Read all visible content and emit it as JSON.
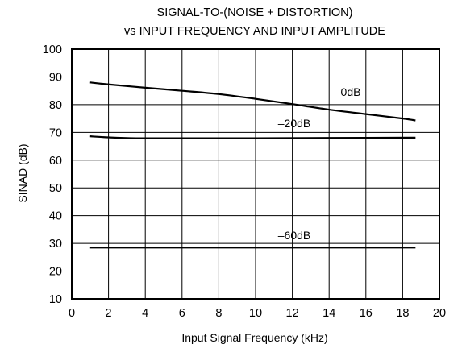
{
  "chart_data": {
    "type": "line",
    "title": "SIGNAL-TO-(NOISE + DISTORTION)",
    "subtitle": "vs INPUT FREQUENCY AND INPUT AMPLITUDE",
    "xlabel": "Input Signal Frequency (kHz)",
    "ylabel": "SINAD (dB)",
    "xlim": [
      0,
      20
    ],
    "ylim": [
      10,
      100
    ],
    "x_ticks": [
      "0",
      "2",
      "4",
      "6",
      "8",
      "10",
      "12",
      "14",
      "16",
      "18",
      "20"
    ],
    "y_ticks": [
      "10",
      "20",
      "30",
      "40",
      "50",
      "60",
      "70",
      "80",
      "90",
      "100"
    ],
    "grid": true,
    "series": [
      {
        "name": "0dB",
        "x": [
          1,
          2,
          4,
          6,
          8,
          10,
          12,
          14,
          16,
          18,
          18.7
        ],
        "y": [
          88,
          87.3,
          86.1,
          85,
          83.8,
          82.1,
          80.2,
          78.2,
          76.6,
          75,
          74.3
        ]
      },
      {
        "name": "–20dB",
        "x": [
          1,
          2,
          3.5,
          6,
          10,
          14,
          18.7
        ],
        "y": [
          68.6,
          68.2,
          67.9,
          67.9,
          67.9,
          68,
          68.1
        ]
      },
      {
        "name": "–60dB",
        "x": [
          1,
          5,
          10,
          15,
          18.7
        ],
        "y": [
          28.5,
          28.5,
          28.5,
          28.5,
          28.5
        ]
      }
    ]
  }
}
